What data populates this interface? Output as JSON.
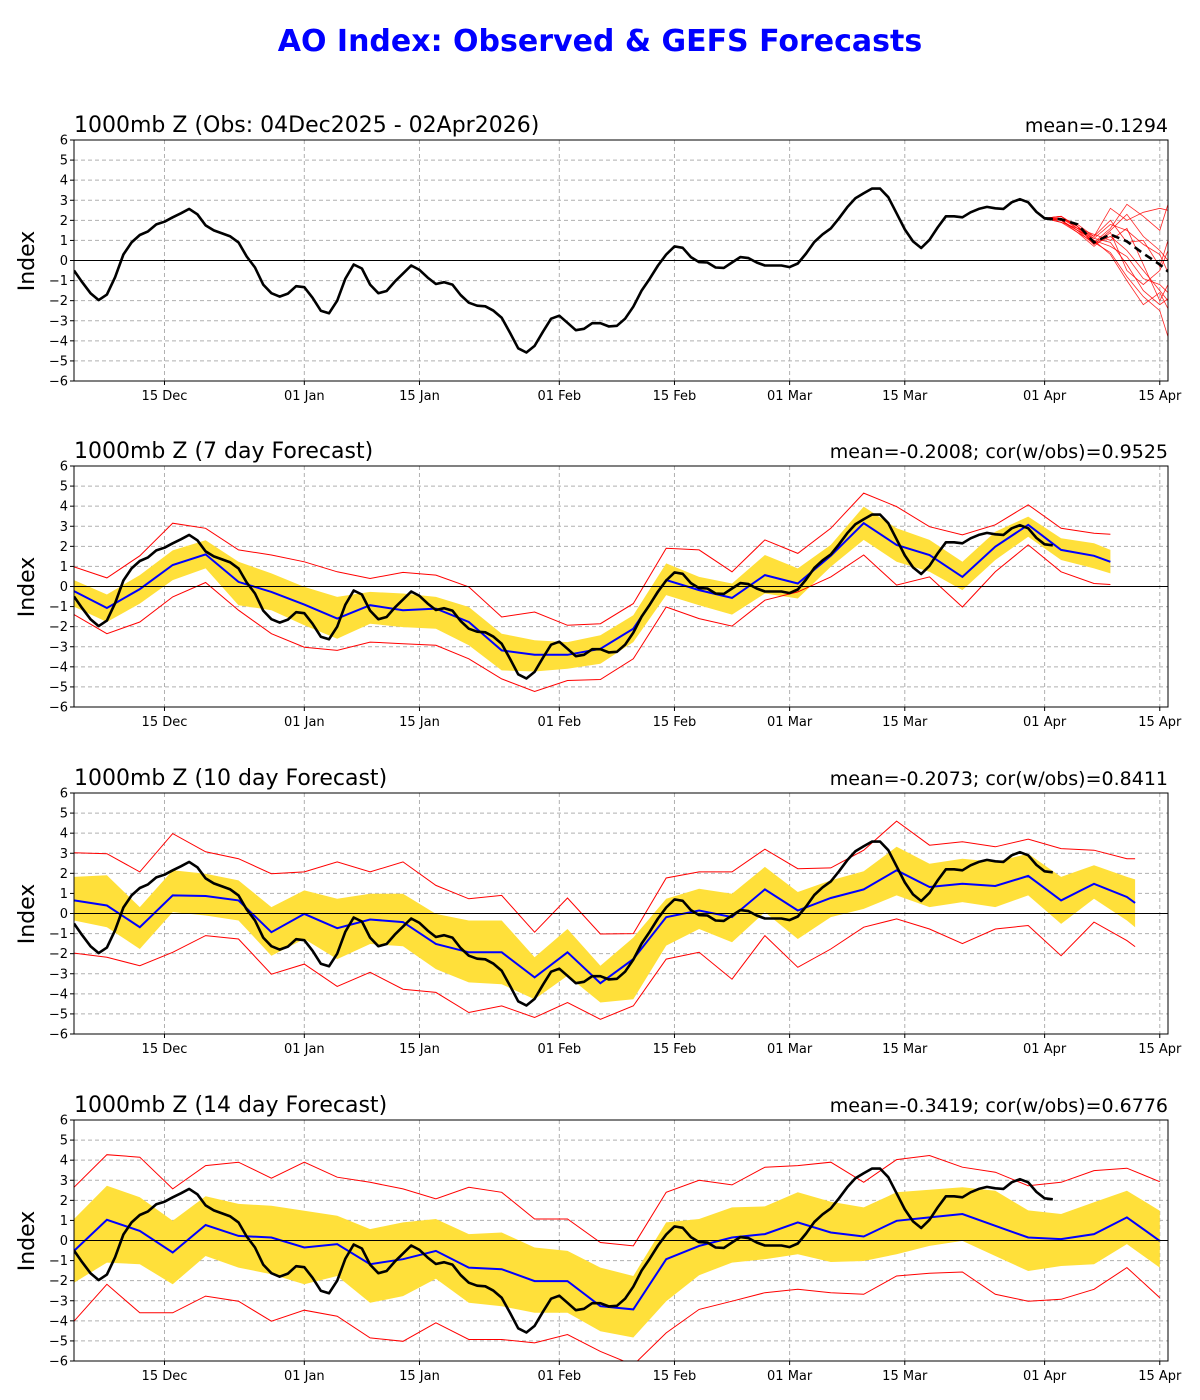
{
  "title": "AO Index: Observed & GEFS Forecasts",
  "colors": {
    "title": "#0000ff",
    "observed": "#000000",
    "ensemble_mean": "#0000ff",
    "band": "#ffe03a",
    "extremes": "#ff0000",
    "members": "#ff0000",
    "grid": "#b0b0b0"
  },
  "chart_data": {
    "type": "line",
    "xlim": [
      "2025-12-04",
      "2026-04-16"
    ],
    "ylim": [
      -6,
      6
    ],
    "yticks": [
      -6,
      -5,
      -4,
      -3,
      -2,
      -1,
      0,
      1,
      2,
      3,
      4,
      5,
      6
    ],
    "xticks": [
      {
        "date": "2025-12-15",
        "label": "15 Dec"
      },
      {
        "date": "2026-01-01",
        "label": "01 Jan"
      },
      {
        "date": "2026-01-15",
        "label": "15 Jan"
      },
      {
        "date": "2026-02-01",
        "label": "01 Feb"
      },
      {
        "date": "2026-02-15",
        "label": "15 Feb"
      },
      {
        "date": "2026-03-01",
        "label": "01 Mar"
      },
      {
        "date": "2026-03-15",
        "label": "15 Mar"
      },
      {
        "date": "2026-04-01",
        "label": "01 Apr"
      },
      {
        "date": "2026-04-15",
        "label": "15 Apr"
      }
    ],
    "grid": true,
    "ylabel": "Index",
    "observed": {
      "start": "2025-12-04",
      "end": "2026-04-02",
      "values": [
        -0.5,
        -1.08,
        -1.63,
        -1.97,
        -1.7,
        -0.83,
        0.3,
        0.9,
        1.27,
        1.45,
        1.8,
        1.93,
        2.15,
        2.35,
        2.57,
        2.3,
        1.75,
        1.5,
        1.35,
        1.2,
        0.9,
        0.2,
        -0.35,
        -1.2,
        -1.63,
        -1.8,
        -1.65,
        -1.28,
        -1.33,
        -1.85,
        -2.5,
        -2.63,
        -2.0,
        -0.9,
        -0.2,
        -0.4,
        -1.2,
        -1.63,
        -1.52,
        -1.05,
        -0.65,
        -0.25,
        -0.47,
        -0.85,
        -1.17,
        -1.08,
        -1.2,
        -1.72,
        -2.1,
        -2.25,
        -2.28,
        -2.5,
        -2.85,
        -3.6,
        -4.37,
        -4.58,
        -4.25,
        -3.55,
        -2.9,
        -2.75,
        -3.1,
        -3.47,
        -3.4,
        -3.12,
        -3.12,
        -3.28,
        -3.25,
        -2.9,
        -2.3,
        -1.5,
        -0.9,
        -0.25,
        0.3,
        0.7,
        0.63,
        0.17,
        -0.08,
        -0.1,
        -0.35,
        -0.37,
        -0.1,
        0.17,
        0.12,
        -0.1,
        -0.25,
        -0.25,
        -0.25,
        -0.33,
        -0.15,
        0.35,
        0.92,
        1.3,
        1.6,
        2.1,
        2.65,
        3.1,
        3.35,
        3.58,
        3.58,
        3.15,
        2.35,
        1.55,
        0.95,
        0.62,
        1.03,
        1.65,
        2.2,
        2.2,
        2.15,
        2.4,
        2.57,
        2.67,
        2.6,
        2.57,
        2.9,
        3.05,
        2.9,
        2.42,
        2.1,
        2.05
      ]
    },
    "panels": [
      {
        "title": "1000mb Z (Obs: 04Dec2025 - 02Apr2026)",
        "stat": "mean=-0.1294",
        "members": {
          "dates": [
            "2026-04-01",
            "2026-04-03",
            "2026-04-05",
            "2026-04-07",
            "2026-04-09",
            "2026-04-11",
            "2026-04-13",
            "2026-04-15",
            "2026-04-16"
          ],
          "series": [
            [
              2.1,
              2.1,
              1.6,
              0.9,
              1.6,
              2.8,
              2.2,
              1.5,
              2.8
            ],
            [
              2.1,
              2.0,
              1.5,
              0.8,
              1.2,
              0.5,
              -0.5,
              -1.5,
              -2.0
            ],
            [
              2.1,
              2.2,
              1.7,
              1.1,
              1.8,
              1.5,
              0.8,
              0.3,
              -0.6
            ],
            [
              2.1,
              1.9,
              1.4,
              0.9,
              0.4,
              -0.8,
              -1.8,
              -2.5,
              -3.8
            ],
            [
              2.1,
              2.1,
              1.8,
              1.2,
              2.6,
              2.0,
              2.4,
              2.6,
              2.5
            ],
            [
              2.1,
              2.0,
              1.5,
              1.0,
              0.7,
              0.2,
              -0.9,
              -1.2,
              -1.6
            ],
            [
              2.1,
              2.2,
              1.6,
              1.3,
              1.0,
              1.6,
              -0.2,
              -2.0,
              -1.2
            ],
            [
              2.1,
              2.0,
              1.4,
              0.7,
              1.4,
              -0.5,
              -1.2,
              -0.5,
              0.5
            ],
            [
              2.1,
              2.1,
              1.7,
              1.0,
              0.3,
              -1.0,
              -2.2,
              -1.6,
              -2.4
            ],
            [
              2.1,
              1.9,
              1.6,
              1.2,
              2.0,
              0.9,
              1.0,
              -0.3,
              1.0
            ],
            [
              2.1,
              2.0,
              1.5,
              1.1,
              0.9,
              -0.2,
              -1.5,
              -2.2,
              -1.9
            ],
            [
              2.1,
              2.2,
              1.7,
              0.8,
              1.5,
              2.3,
              1.2,
              0.5,
              0.0
            ]
          ],
          "mean": [
            2.1,
            2.05,
            1.8,
            0.9,
            1.3,
            0.95,
            0.35,
            -0.2,
            -0.55
          ]
        }
      },
      {
        "title": "1000mb Z (7 day Forecast)",
        "stat": "mean=-0.2008; cor(w/obs)=0.9525",
        "dates": [
          "2025-12-04",
          "2025-12-08",
          "2025-12-12",
          "2025-12-16",
          "2025-12-20",
          "2025-12-24",
          "2025-12-28",
          "2026-01-01",
          "2026-01-05",
          "2026-01-09",
          "2026-01-13",
          "2026-01-17",
          "2026-01-21",
          "2026-01-25",
          "2026-01-29",
          "2026-02-02",
          "2026-02-06",
          "2026-02-10",
          "2026-02-14",
          "2026-02-18",
          "2026-02-22",
          "2026-02-26",
          "2026-03-02",
          "2026-03-06",
          "2026-03-10",
          "2026-03-14",
          "2026-03-18",
          "2026-03-22",
          "2026-03-26",
          "2026-03-30",
          "2026-04-03",
          "2026-04-07",
          "2026-04-09"
        ],
        "mean": [
          -0.23,
          -1.07,
          -0.13,
          1.07,
          1.6,
          0.23,
          -0.27,
          -0.9,
          -1.6,
          -0.93,
          -1.18,
          -1.1,
          -1.77,
          -3.18,
          -3.4,
          -3.4,
          -3.1,
          -2.1,
          0.32,
          -0.18,
          -0.57,
          0.57,
          0.15,
          1.53,
          3.15,
          2.07,
          1.57,
          0.48,
          1.98,
          3.07,
          1.82,
          1.53,
          1.23
        ],
        "band_upper": [
          0.32,
          -0.4,
          0.57,
          1.8,
          2.3,
          1.23,
          0.65,
          -0.02,
          -0.52,
          -0.27,
          -0.35,
          -0.52,
          -1.02,
          -2.35,
          -2.68,
          -2.77,
          -2.43,
          -1.43,
          1.15,
          0.48,
          0.15,
          1.57,
          0.9,
          2.07,
          3.98,
          2.9,
          2.32,
          1.23,
          2.73,
          3.48,
          2.4,
          2.15,
          1.82
        ],
        "band_lower": [
          -1.0,
          -1.77,
          -0.85,
          0.32,
          0.9,
          -0.93,
          -1.18,
          -1.93,
          -2.6,
          -1.85,
          -2.02,
          -2.1,
          -2.93,
          -4.18,
          -4.23,
          -4.1,
          -3.85,
          -2.77,
          -0.43,
          -0.93,
          -1.4,
          -0.35,
          -0.6,
          0.98,
          2.32,
          1.23,
          0.73,
          -0.18,
          1.32,
          2.48,
          1.32,
          0.9,
          0.65
        ],
        "max": [
          0.98,
          0.43,
          1.53,
          3.15,
          2.9,
          1.82,
          1.57,
          1.23,
          0.73,
          0.4,
          0.7,
          0.57,
          -0.02,
          -1.52,
          -1.27,
          -1.93,
          -1.85,
          -0.85,
          1.9,
          1.82,
          0.73,
          2.32,
          1.65,
          2.9,
          4.65,
          3.98,
          2.98,
          2.57,
          3.07,
          4.07,
          2.9,
          2.65,
          2.6
        ],
        "min": [
          -1.4,
          -2.35,
          -1.77,
          -0.52,
          0.2,
          -1.18,
          -2.35,
          -3.02,
          -3.18,
          -2.77,
          -2.85,
          -2.93,
          -3.6,
          -4.6,
          -5.23,
          -4.68,
          -4.63,
          -3.6,
          -1.02,
          -1.6,
          -1.97,
          -0.68,
          -0.27,
          0.48,
          1.57,
          0.07,
          0.48,
          -1.02,
          0.73,
          2.07,
          0.73,
          0.15,
          0.1
        ]
      },
      {
        "title": "1000mb Z (10 day Forecast)",
        "stat": "mean=-0.2073; cor(w/obs)=0.8411",
        "dates": [
          "2025-12-04",
          "2025-12-08",
          "2025-12-12",
          "2025-12-16",
          "2025-12-20",
          "2025-12-24",
          "2025-12-28",
          "2026-01-01",
          "2026-01-05",
          "2026-01-09",
          "2026-01-13",
          "2026-01-17",
          "2026-01-21",
          "2026-01-25",
          "2026-01-29",
          "2026-02-02",
          "2026-02-06",
          "2026-02-10",
          "2026-02-14",
          "2026-02-18",
          "2026-02-22",
          "2026-02-26",
          "2026-03-02",
          "2026-03-06",
          "2026-03-10",
          "2026-03-14",
          "2026-03-18",
          "2026-03-22",
          "2026-03-26",
          "2026-03-30",
          "2026-04-03",
          "2026-04-07",
          "2026-04-11",
          "2026-04-12"
        ],
        "mean": [
          0.65,
          0.4,
          -0.68,
          0.9,
          0.87,
          0.65,
          -0.93,
          -0.02,
          -0.73,
          -0.3,
          -0.43,
          -1.52,
          -1.93,
          -1.93,
          -3.18,
          -1.93,
          -3.47,
          -2.27,
          -0.18,
          0.15,
          -0.18,
          1.2,
          0.15,
          0.77,
          1.2,
          2.15,
          1.32,
          1.48,
          1.37,
          1.87,
          0.65,
          1.48,
          0.82,
          0.53
        ],
        "band_upper": [
          1.82,
          1.9,
          0.32,
          2.15,
          1.98,
          1.65,
          0.32,
          1.15,
          0.73,
          0.98,
          0.98,
          -0.02,
          -0.35,
          -0.35,
          -2.18,
          -0.77,
          -2.6,
          -1.2,
          0.73,
          1.23,
          0.98,
          2.32,
          1.07,
          1.65,
          2.1,
          3.32,
          2.48,
          2.73,
          2.57,
          2.98,
          1.82,
          2.4,
          1.82,
          1.7
        ],
        "band_lower": [
          -0.35,
          -0.68,
          -1.77,
          0.07,
          -0.1,
          -0.35,
          -2.1,
          -1.27,
          -2.27,
          -1.52,
          -1.63,
          -2.77,
          -3.43,
          -3.52,
          -4.27,
          -3.1,
          -4.43,
          -4.27,
          -1.6,
          -0.77,
          -1.43,
          0.07,
          -1.27,
          -0.18,
          0.23,
          0.9,
          0.32,
          0.57,
          0.32,
          0.9,
          -0.52,
          0.73,
          -0.35,
          -0.68
        ],
        "max": [
          3.02,
          2.98,
          2.07,
          3.98,
          3.07,
          2.73,
          1.98,
          2.07,
          2.57,
          2.07,
          2.57,
          1.4,
          0.73,
          0.9,
          -0.93,
          0.77,
          -1.02,
          -1.0,
          1.77,
          2.07,
          2.07,
          3.2,
          2.23,
          2.27,
          3.15,
          4.6,
          3.4,
          3.57,
          3.32,
          3.7,
          3.23,
          3.15,
          2.73,
          2.73
        ],
        "min": [
          -1.97,
          -2.18,
          -2.6,
          -1.93,
          -1.1,
          -1.27,
          -3.02,
          -2.52,
          -3.63,
          -2.93,
          -3.77,
          -3.93,
          -4.93,
          -4.6,
          -5.18,
          -4.43,
          -5.27,
          -4.6,
          -2.27,
          -1.93,
          -3.27,
          -1.1,
          -2.68,
          -1.77,
          -0.68,
          -0.27,
          -0.77,
          -1.5,
          -0.77,
          -0.6,
          -2.1,
          -0.43,
          -1.35,
          -1.65
        ]
      },
      {
        "title": "1000mb Z (14 day Forecast)",
        "stat": "mean=-0.3419; cor(w/obs)=0.6776",
        "dates": [
          "2025-12-04",
          "2025-12-08",
          "2025-12-12",
          "2025-12-16",
          "2025-12-20",
          "2025-12-24",
          "2025-12-28",
          "2026-01-01",
          "2026-01-05",
          "2026-01-09",
          "2026-01-13",
          "2026-01-17",
          "2026-01-21",
          "2026-01-25",
          "2026-01-29",
          "2026-02-02",
          "2026-02-06",
          "2026-02-10",
          "2026-02-14",
          "2026-02-18",
          "2026-02-22",
          "2026-02-26",
          "2026-03-02",
          "2026-03-06",
          "2026-03-10",
          "2026-03-14",
          "2026-03-18",
          "2026-03-22",
          "2026-03-26",
          "2026-03-30",
          "2026-04-03",
          "2026-04-07",
          "2026-04-11",
          "2026-04-15"
        ],
        "mean": [
          -0.52,
          1.03,
          0.48,
          -0.6,
          0.77,
          0.23,
          0.15,
          -0.35,
          -0.18,
          -1.18,
          -0.93,
          -0.52,
          -1.35,
          -1.43,
          -2.02,
          -2.02,
          -3.27,
          -3.43,
          -0.93,
          -0.27,
          0.15,
          0.32,
          0.9,
          0.4,
          0.2,
          0.98,
          1.15,
          1.32,
          0.73,
          0.15,
          0.07,
          0.32,
          1.15,
          -0.02
        ],
        "band_upper": [
          1.07,
          2.73,
          2.15,
          0.98,
          2.2,
          1.82,
          1.73,
          1.48,
          1.23,
          0.57,
          0.9,
          1.07,
          0.32,
          0.4,
          -0.35,
          -0.52,
          -1.35,
          -1.77,
          0.9,
          1.07,
          1.65,
          1.7,
          2.4,
          1.93,
          1.65,
          2.4,
          2.53,
          2.65,
          2.48,
          1.5,
          1.32,
          1.9,
          2.48,
          1.48
        ],
        "band_lower": [
          -2.1,
          -1.1,
          -1.18,
          -2.18,
          -0.77,
          -1.35,
          -1.68,
          -2.18,
          -1.77,
          -3.1,
          -2.77,
          -1.9,
          -3.1,
          -3.27,
          -3.6,
          -3.6,
          -4.52,
          -4.83,
          -3.02,
          -1.73,
          -1.1,
          -0.93,
          -0.68,
          -1.07,
          -1.02,
          -0.68,
          -0.27,
          -0.02,
          -0.77,
          -1.52,
          -1.27,
          -1.18,
          -0.18,
          -1.35
        ],
        "max": [
          2.65,
          4.27,
          4.15,
          2.57,
          3.73,
          3.9,
          3.1,
          3.9,
          3.15,
          2.9,
          2.57,
          2.07,
          2.65,
          2.4,
          1.07,
          1.07,
          -0.1,
          -0.27,
          2.4,
          3.0,
          2.77,
          3.65,
          3.73,
          3.9,
          2.9,
          4.03,
          4.23,
          3.65,
          3.4,
          2.73,
          2.9,
          3.48,
          3.6,
          2.93
        ],
        "min": [
          -4.02,
          -2.18,
          -3.6,
          -3.6,
          -2.77,
          -3.02,
          -4.02,
          -3.47,
          -3.77,
          -4.85,
          -5.02,
          -4.1,
          -4.93,
          -4.93,
          -5.1,
          -4.68,
          -5.52,
          -6.2,
          -4.6,
          -3.43,
          -3.02,
          -2.6,
          -2.43,
          -2.6,
          -2.68,
          -1.77,
          -1.63,
          -1.57,
          -2.68,
          -3.02,
          -2.93,
          -2.43,
          -1.35,
          -2.85
        ]
      }
    ]
  }
}
